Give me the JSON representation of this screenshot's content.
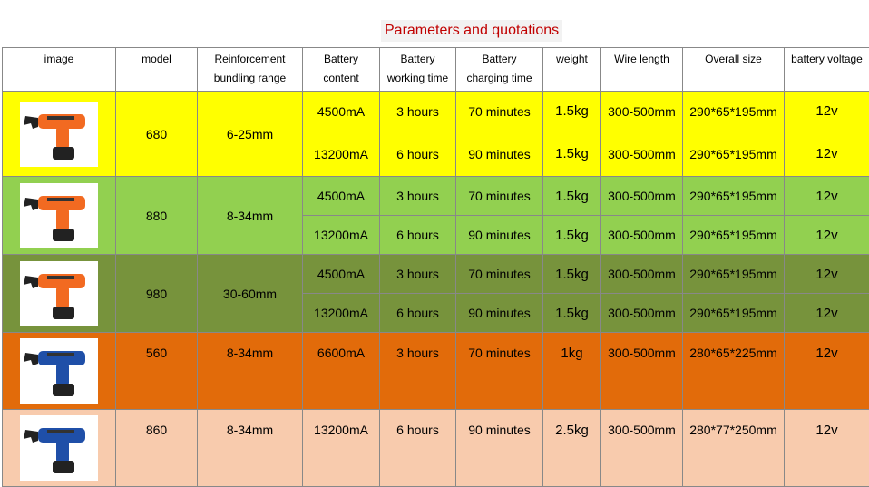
{
  "title": "Parameters and quotations",
  "header": [
    "image",
    "model",
    "Reinforcement\nbundling range",
    "Battery\ncontent",
    "Battery\nworking time",
    "Battery\ncharging time",
    "weight",
    "Wire length",
    "Overall size",
    "battery voltage"
  ],
  "groups": [
    {
      "model": "680",
      "range": "6-25mm",
      "color": "#ffff00",
      "tool_color": "#f26a21",
      "variants": [
        [
          "4500mA",
          "3 hours",
          "70 minutes",
          "1.5kg",
          "300-500mm",
          "290*65*195mm",
          "12v"
        ],
        [
          "13200mA",
          "6 hours",
          "90 minutes",
          "1.5kg",
          "300-500mm",
          "290*65*195mm",
          "12v"
        ]
      ]
    },
    {
      "model": "880",
      "range": "8-34mm",
      "color": "#92d050",
      "tool_color": "#f26a21",
      "variants": [
        [
          "4500mA",
          "3 hours",
          "70 minutes",
          "1.5kg",
          "300-500mm",
          "290*65*195mm",
          "12v"
        ],
        [
          "13200mA",
          "6 hours",
          "90 minutes",
          "1.5kg",
          "300-500mm",
          "290*65*195mm",
          "12v"
        ]
      ]
    },
    {
      "model": "980",
      "range": "30-60mm",
      "color": "#77933c",
      "tool_color": "#f26a21",
      "variants": [
        [
          "4500mA",
          "3 hours",
          "70 minutes",
          "1.5kg",
          "300-500mm",
          "290*65*195mm",
          "12v"
        ],
        [
          "13200mA",
          "6 hours",
          "90 minutes",
          "1.5kg",
          "300-500mm",
          "290*65*195mm",
          "12v"
        ]
      ]
    },
    {
      "model": "560",
      "range": "8-34mm",
      "color": "#e26b0a",
      "tool_color": "#1f4fa8",
      "variants": [
        [
          "6600mA",
          "3 hours",
          "70 minutes",
          "1kg",
          "300-500mm",
          "280*65*225mm",
          "12v"
        ]
      ]
    },
    {
      "model": "860",
      "range": "8-34mm",
      "color": "#f8cbad",
      "tool_color": "#1f4fa8",
      "variants": [
        [
          "13200mA",
          "6 hours",
          "90 minutes",
          "2.5kg",
          "300-500mm",
          "280*77*250mm",
          "12v"
        ]
      ]
    }
  ]
}
